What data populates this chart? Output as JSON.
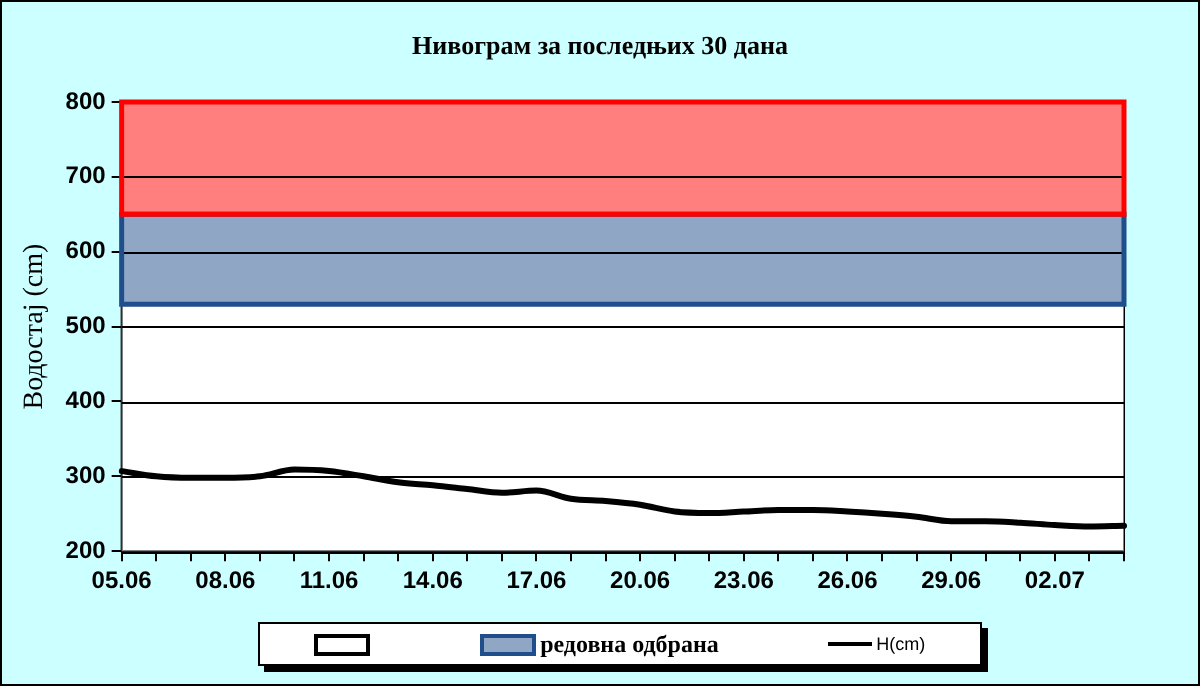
{
  "chart_data": {
    "type": "line",
    "title": "Нивограм за последњих 30 дана",
    "ylabel": "Водостај (cm)",
    "categories": [
      "05.06",
      null,
      null,
      "08.06",
      null,
      null,
      "11.06",
      null,
      null,
      "14.06",
      null,
      null,
      "17.06",
      null,
      null,
      "20.06",
      null,
      null,
      "23.06",
      null,
      null,
      "26.06",
      null,
      null,
      "29.06",
      null,
      null,
      "02.07",
      null,
      null
    ],
    "series": [
      {
        "name": "H(cm)",
        "color": "#000000",
        "values": [
          307,
          300,
          298,
          298,
          300,
          309,
          307,
          300,
          292,
          288,
          283,
          278,
          281,
          270,
          267,
          262,
          253,
          251,
          253,
          255,
          255,
          253,
          250,
          246,
          240,
          240,
          238,
          235,
          233,
          234
        ]
      }
    ],
    "ylim": [
      200,
      800
    ],
    "yticks": [
      200,
      300,
      400,
      500,
      600,
      700,
      800
    ],
    "grid": "y",
    "legend": "bottom",
    "marker": "none",
    "line_style": "solid",
    "bands": [
      {
        "axis": "y",
        "from": 200,
        "to": 530,
        "label": null,
        "color": "#ffffff"
      },
      {
        "axis": "y",
        "from": 530,
        "to": 650,
        "label": "редовна одбрана",
        "color": "#1f4e8c"
      },
      {
        "axis": "y",
        "from": 650,
        "to": 800,
        "color": "#ff0000"
      }
    ]
  }
}
